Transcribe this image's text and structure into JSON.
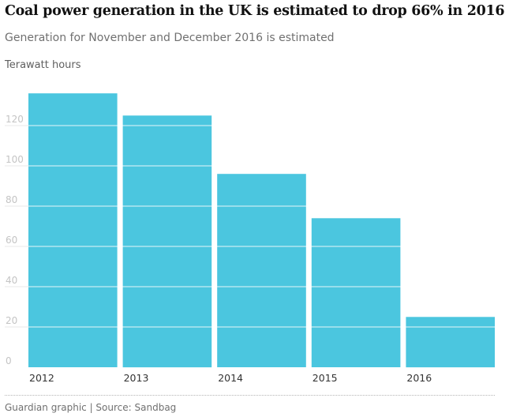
{
  "header": {
    "title": "Coal power generation in the UK is estimated to drop 66% in 2016",
    "subtitle": "Generation for November and December 2016 is estimated",
    "unit": "Terawatt hours"
  },
  "footer": {
    "source": "Guardian graphic | Source: Sandbag"
  },
  "colors": {
    "bar": "#4bc6df",
    "tick_label": "#c4c4c4",
    "category_label": "#333333"
  },
  "chart_data": {
    "type": "bar",
    "categories": [
      "2012",
      "2013",
      "2014",
      "2015",
      "2016"
    ],
    "values": [
      136,
      125,
      96,
      74,
      25
    ],
    "yticks": [
      0,
      20,
      40,
      60,
      80,
      100,
      120
    ],
    "ylim": [
      0,
      140
    ],
    "ylabel": "Terawatt hours",
    "grid": true,
    "legend": "none"
  }
}
